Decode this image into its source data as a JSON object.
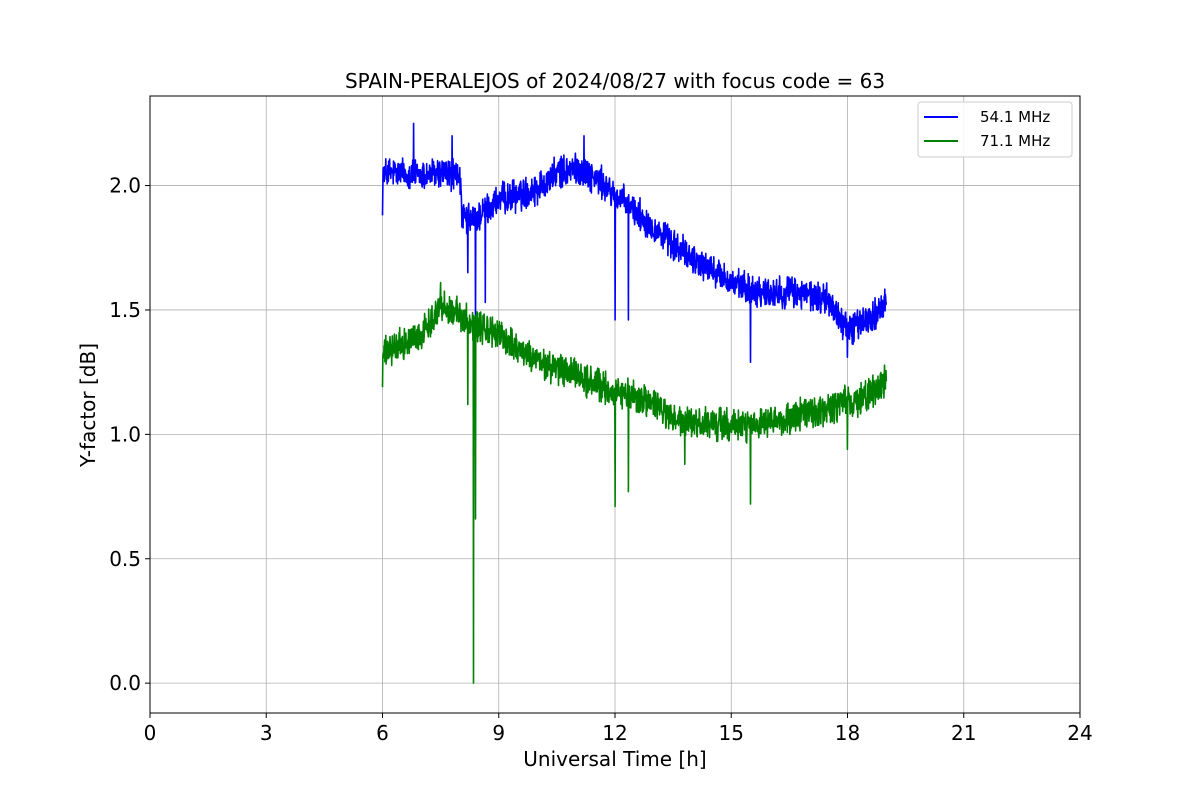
{
  "chart_data": {
    "type": "line",
    "title": "SPAIN-PERALEJOS of 2024/08/27 with focus code = 63",
    "xlabel": "Universal Time [h]",
    "ylabel": "Y-factor [dB]",
    "xlim": [
      0,
      24
    ],
    "ylim": [
      -0.12,
      2.36
    ],
    "xticks": [
      0,
      3,
      6,
      9,
      12,
      15,
      18,
      21,
      24
    ],
    "xtick_labels": [
      "0",
      "3",
      "6",
      "9",
      "12",
      "15",
      "18",
      "21",
      "24"
    ],
    "yticks": [
      0.0,
      0.5,
      1.0,
      1.5,
      2.0
    ],
    "ytick_labels": [
      "0.0",
      "0.5",
      "1.0",
      "1.5",
      "2.0"
    ],
    "grid": true,
    "legend_position": "top-right",
    "series": [
      {
        "name": "54.1 MHz",
        "color": "#0000ff",
        "x": [
          6.0,
          6.5,
          7.0,
          7.5,
          8.0,
          8.05,
          8.3,
          8.5,
          9.0,
          9.5,
          10.0,
          10.5,
          11.0,
          11.5,
          12.0,
          12.5,
          13.0,
          13.5,
          14.0,
          14.5,
          15.0,
          15.5,
          16.0,
          16.5,
          17.0,
          17.5,
          18.0,
          18.5,
          19.0
        ],
        "values": [
          2.05,
          2.05,
          2.04,
          2.05,
          2.04,
          1.87,
          1.86,
          1.88,
          1.94,
          1.96,
          1.99,
          2.05,
          2.07,
          2.03,
          1.96,
          1.9,
          1.83,
          1.76,
          1.71,
          1.66,
          1.61,
          1.58,
          1.57,
          1.57,
          1.56,
          1.54,
          1.42,
          1.46,
          1.52
        ],
        "noise": 0.05,
        "spikes": [
          {
            "x": 6.0,
            "value": 1.88
          },
          {
            "x": 6.8,
            "value": 2.25
          },
          {
            "x": 7.8,
            "value": 2.2
          },
          {
            "x": 8.2,
            "value": 1.65
          },
          {
            "x": 8.4,
            "value": 1.43
          },
          {
            "x": 8.65,
            "value": 1.53
          },
          {
            "x": 11.2,
            "value": 2.2
          },
          {
            "x": 12.0,
            "value": 1.46
          },
          {
            "x": 12.35,
            "value": 1.46
          },
          {
            "x": 15.5,
            "value": 1.29
          },
          {
            "x": 18.0,
            "value": 1.31
          }
        ]
      },
      {
        "name": "71.1 MHz",
        "color": "#008000",
        "x": [
          6.0,
          6.5,
          7.0,
          7.5,
          8.0,
          8.5,
          9.0,
          9.5,
          10.0,
          10.5,
          11.0,
          11.5,
          12.0,
          12.5,
          13.0,
          13.5,
          14.0,
          14.5,
          15.0,
          15.5,
          16.0,
          16.5,
          17.0,
          17.5,
          18.0,
          18.5,
          19.0
        ],
        "values": [
          1.32,
          1.36,
          1.4,
          1.52,
          1.48,
          1.43,
          1.4,
          1.35,
          1.29,
          1.26,
          1.24,
          1.2,
          1.17,
          1.15,
          1.12,
          1.06,
          1.04,
          1.04,
          1.04,
          1.03,
          1.04,
          1.06,
          1.09,
          1.1,
          1.13,
          1.15,
          1.22
        ],
        "noise": 0.05,
        "spikes": [
          {
            "x": 6.0,
            "value": 1.19
          },
          {
            "x": 7.5,
            "value": 1.61
          },
          {
            "x": 8.2,
            "value": 1.12
          },
          {
            "x": 8.35,
            "value": 0.0
          },
          {
            "x": 8.4,
            "value": 0.66
          },
          {
            "x": 12.0,
            "value": 0.71
          },
          {
            "x": 12.35,
            "value": 0.77
          },
          {
            "x": 13.8,
            "value": 0.88
          },
          {
            "x": 15.5,
            "value": 0.72
          },
          {
            "x": 18.0,
            "value": 0.94
          }
        ]
      }
    ]
  }
}
